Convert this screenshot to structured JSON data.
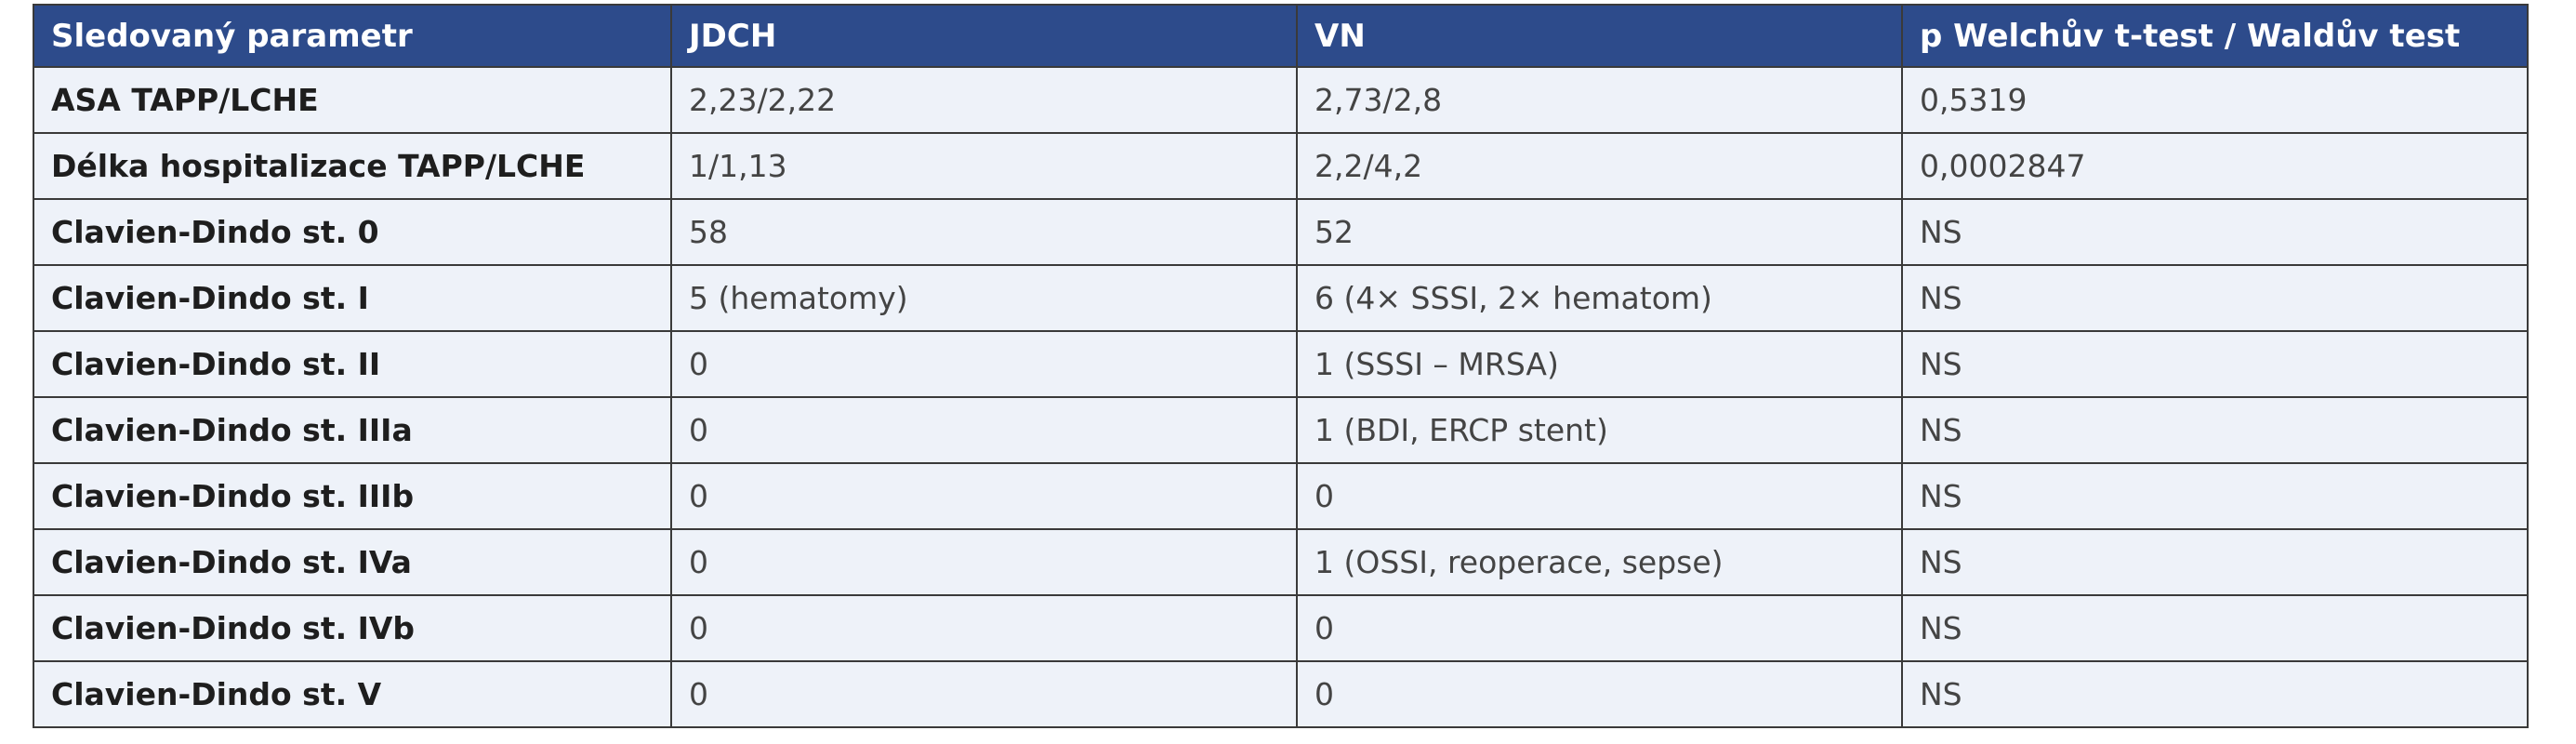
{
  "table": {
    "header": [
      "Sledovaný parametr",
      "JDCH",
      "VN",
      "p Welchův t-test / Waldův test"
    ],
    "rows": [
      [
        "ASA TAPP/LCHE",
        "2,23/2,22",
        "2,73/2,8",
        "0,5319"
      ],
      [
        "Délka hospitalizace TAPP/LCHE",
        "1/1,13",
        "2,2/4,2",
        "0,0002847"
      ],
      [
        "Clavien-Dindo st. 0",
        "58",
        "52",
        "NS"
      ],
      [
        "Clavien-Dindo st. I",
        "5 (hematomy)",
        "6 (4× SSSI, 2× hematom)",
        "NS"
      ],
      [
        "Clavien-Dindo st. II",
        "0",
        "1 (SSSI – MRSA)",
        "NS"
      ],
      [
        "Clavien-Dindo st. IIIa",
        "0",
        "1 (BDI, ERCP stent)",
        "NS"
      ],
      [
        "Clavien-Dindo st. IIIb",
        "0",
        "0",
        "NS"
      ],
      [
        "Clavien-Dindo st. IVa",
        "0",
        "1 (OSSI, reoperace, sepse)",
        "NS"
      ],
      [
        "Clavien-Dindo st. IVb",
        "0",
        "0",
        "NS"
      ],
      [
        "Clavien-Dindo st. V",
        "0",
        "0",
        "NS"
      ]
    ]
  }
}
